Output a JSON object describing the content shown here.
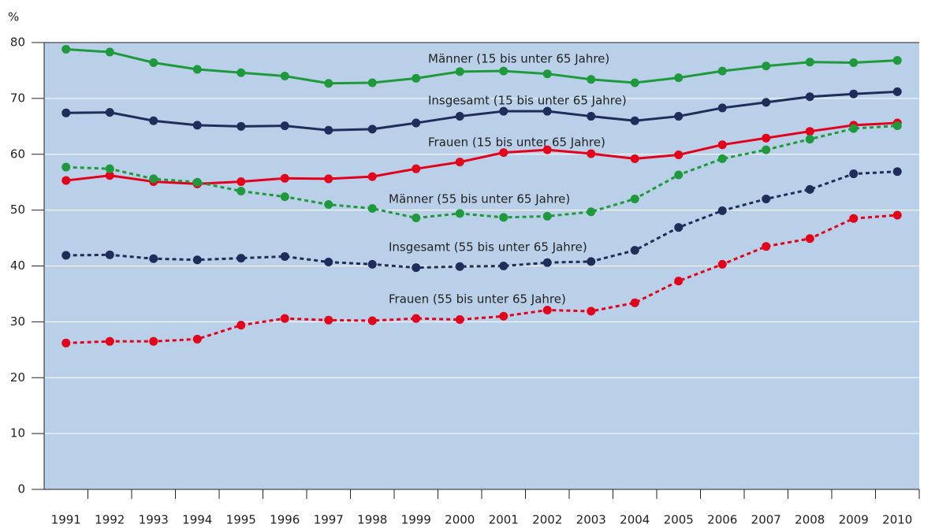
{
  "chart_data": {
    "type": "line",
    "y_label": "%",
    "categories": [
      "1991",
      "1992",
      "1993",
      "1994",
      "1995",
      "1996",
      "1997",
      "1998",
      "1999",
      "2000",
      "2001",
      "2002",
      "2003",
      "2004",
      "2005",
      "2006",
      "2007",
      "2008",
      "2009",
      "2010"
    ],
    "ylim": [
      0,
      80
    ],
    "yticks": [
      0,
      10,
      20,
      30,
      40,
      50,
      60,
      70,
      80
    ],
    "grid": true,
    "series": [
      {
        "name": "Männer (15 bis unter 65 Jahre)",
        "color": "#1e9a3c",
        "dashed": false,
        "values": [
          78.8,
          78.3,
          76.4,
          75.2,
          74.6,
          74.0,
          72.7,
          72.8,
          73.6,
          74.8,
          74.9,
          74.4,
          73.4,
          72.8,
          73.7,
          74.9,
          75.8,
          76.5,
          76.4,
          76.8
        ]
      },
      {
        "name": "Insgesamt  (15 bis unter 65 Jahre)",
        "color": "#1f2d5a",
        "dashed": false,
        "values": [
          67.4,
          67.5,
          66.0,
          65.2,
          65.0,
          65.1,
          64.3,
          64.5,
          65.6,
          66.8,
          67.7,
          67.7,
          66.8,
          66.0,
          66.8,
          68.3,
          69.3,
          70.3,
          70.8,
          71.2
        ]
      },
      {
        "name": "Frauen (15 bis unter 65 Jahre)",
        "color": "#e3001b",
        "dashed": false,
        "values": [
          55.3,
          56.2,
          55.1,
          54.7,
          55.1,
          55.7,
          55.6,
          56.0,
          57.4,
          58.6,
          60.3,
          60.8,
          60.1,
          59.2,
          59.9,
          61.7,
          62.9,
          64.1,
          65.2,
          65.6
        ]
      },
      {
        "name": "Männer (55 bis unter 65 Jahre)",
        "color": "#1e9a3c",
        "dashed": true,
        "values": [
          57.7,
          57.4,
          55.6,
          55.0,
          53.4,
          52.4,
          51.0,
          50.3,
          48.6,
          49.4,
          48.7,
          48.9,
          49.7,
          52.0,
          56.3,
          59.2,
          60.8,
          62.7,
          64.6,
          65.1
        ]
      },
      {
        "name": "Insgesamt  (55 bis unter 65 Jahre)",
        "color": "#1f2d5a",
        "dashed": true,
        "values": [
          41.9,
          42.0,
          41.3,
          41.1,
          41.4,
          41.7,
          40.7,
          40.3,
          39.7,
          39.9,
          40.0,
          40.6,
          40.8,
          42.8,
          46.9,
          49.9,
          52.0,
          53.7,
          56.5,
          56.9
        ]
      },
      {
        "name": "Frauen (55 bis unter 65 Jahre)",
        "color": "#e3001b",
        "dashed": true,
        "values": [
          26.2,
          26.5,
          26.5,
          26.9,
          29.4,
          30.6,
          30.3,
          30.2,
          30.6,
          30.4,
          31.0,
          32.1,
          31.9,
          33.4,
          37.3,
          40.3,
          43.5,
          44.9,
          48.5,
          49.1
        ]
      }
    ]
  }
}
